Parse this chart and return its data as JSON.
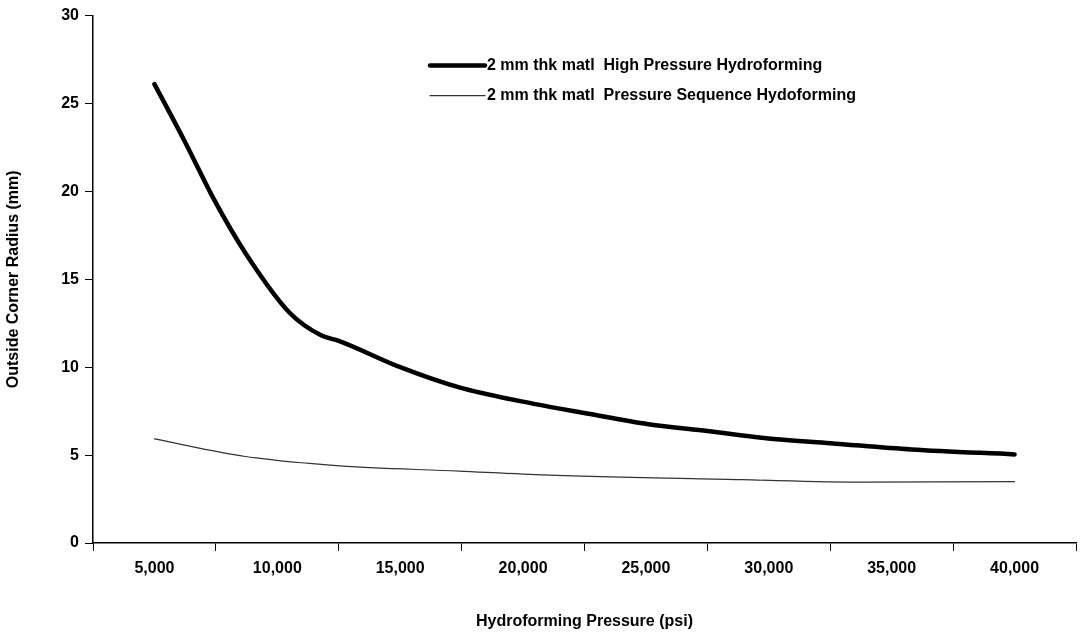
{
  "chart_data": {
    "type": "line",
    "xlabel": "Hydroforming Pressure (psi)",
    "ylabel": "Outside Corner Radius (mm)",
    "xlim": [
      2500,
      42500
    ],
    "xticks": [
      {
        "value": 2500,
        "label": null
      },
      {
        "value": 5000,
        "label": "5,000"
      },
      {
        "value": 7500,
        "label": null
      },
      {
        "value": 10000,
        "label": "10,000"
      },
      {
        "value": 12500,
        "label": null
      },
      {
        "value": 15000,
        "label": "15,000"
      },
      {
        "value": 17500,
        "label": null
      },
      {
        "value": 20000,
        "label": "20,000"
      },
      {
        "value": 22500,
        "label": null
      },
      {
        "value": 25000,
        "label": "25,000"
      },
      {
        "value": 27500,
        "label": null
      },
      {
        "value": 30000,
        "label": "30,000"
      },
      {
        "value": 32500,
        "label": null
      },
      {
        "value": 35000,
        "label": "35,000"
      },
      {
        "value": 37500,
        "label": null
      },
      {
        "value": 40000,
        "label": "40,000"
      },
      {
        "value": 42500,
        "label": null
      }
    ],
    "ylim": [
      0,
      30
    ],
    "yticks": [
      0,
      5,
      10,
      15,
      20,
      25,
      30
    ],
    "legend": "top",
    "marker": "none",
    "series": [
      {
        "name": "2 mm thk matl  High Pressure Hydroforming",
        "color": "#000000",
        "x": [
          5000,
          6250,
          7400,
          8700,
          10500,
          11800,
          12500,
          15000,
          17400,
          20500,
          22600,
          25100,
          27500,
          30200,
          32500,
          35800,
          40000
        ],
        "values": [
          26.1,
          22.8,
          19.6,
          16.5,
          13.1,
          11.8,
          11.5,
          10.0,
          8.85,
          7.9,
          7.37,
          6.76,
          6.37,
          5.92,
          5.68,
          5.32,
          5.04
        ]
      },
      {
        "name": "2 mm thk matl  Pressure Sequence Hydoforming",
        "color": "#333333",
        "x": [
          5000,
          8700,
          12400,
          17400,
          20500,
          28900,
          33900,
          40000
        ],
        "values": [
          5.92,
          4.92,
          4.4,
          4.09,
          3.89,
          3.6,
          3.46,
          3.49
        ]
      }
    ]
  }
}
